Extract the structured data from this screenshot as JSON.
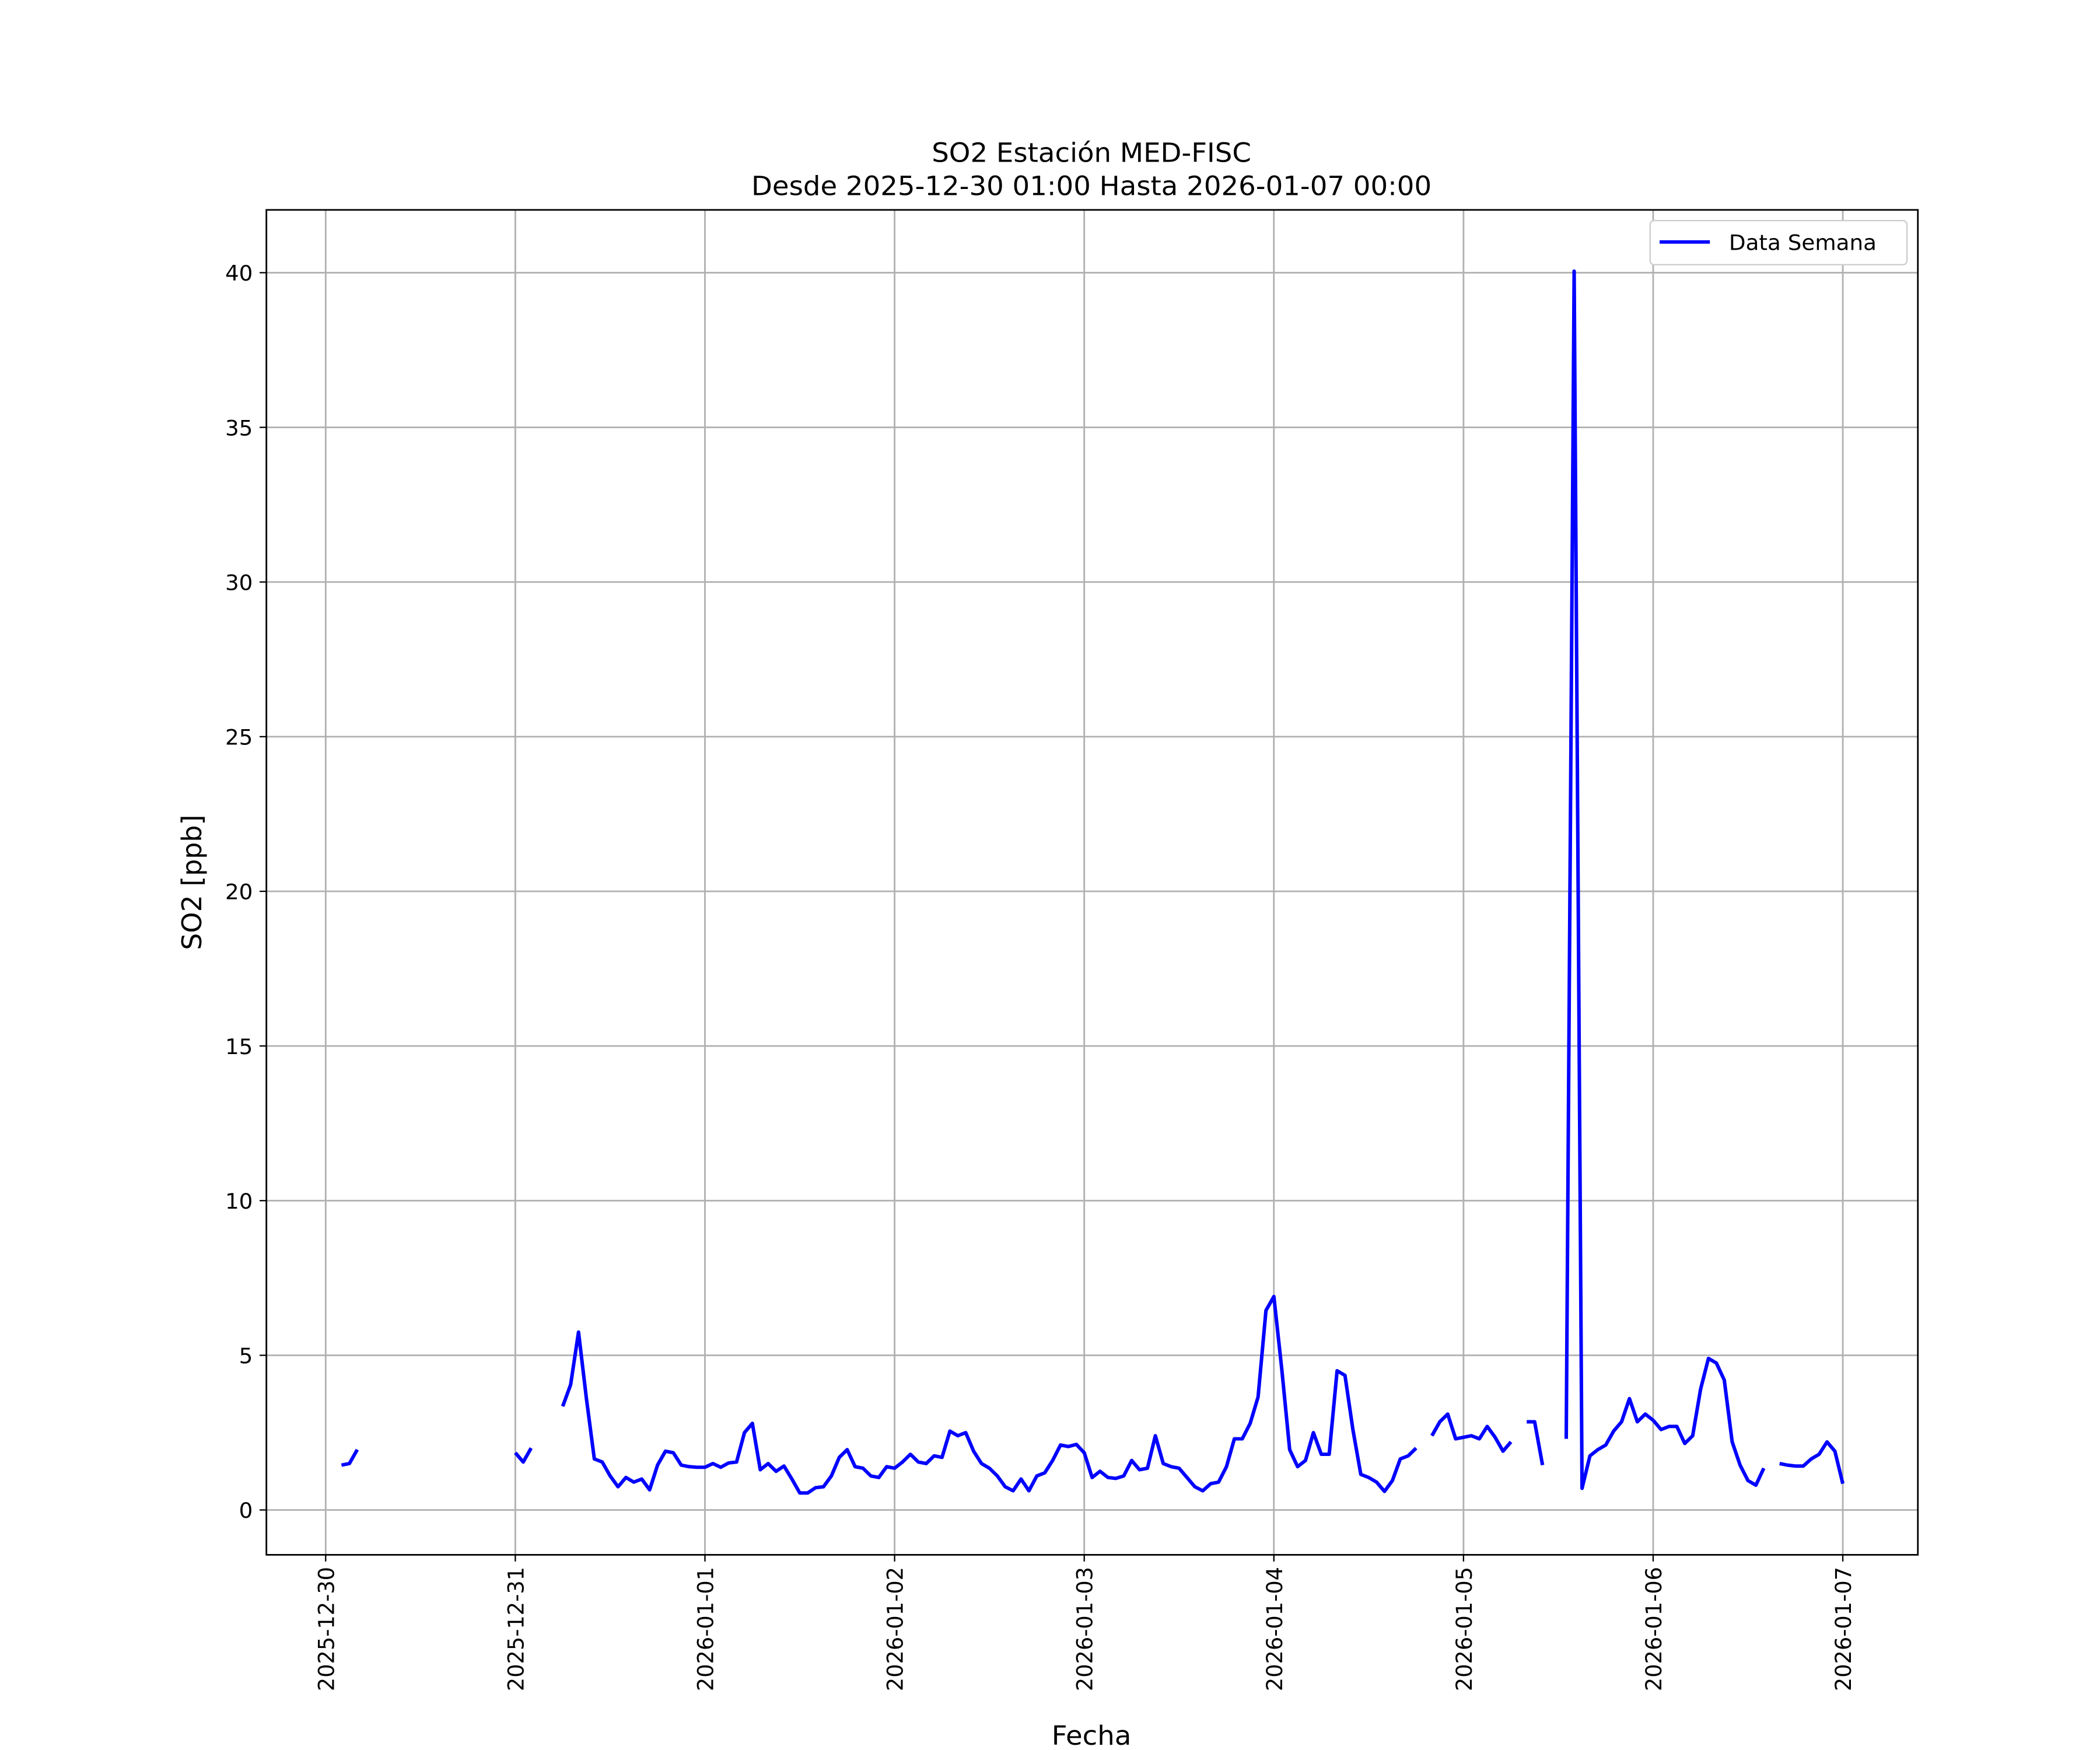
{
  "chart_data": {
    "type": "line",
    "title": "SO2 Estación MED-FISC",
    "subtitle": "Desde 2025-12-30 01:00 Hasta 2026-01-07 00:00",
    "xlabel": "Fecha",
    "ylabel": "SO2 [ppb]",
    "x": [
      "2025-12-30 01:00",
      "2025-12-30 02:00",
      "2025-12-30 03:00",
      "2025-12-30 04:00",
      "2025-12-30 05:00",
      "2025-12-30 06:00",
      "2025-12-30 07:00",
      "2025-12-30 08:00",
      "2025-12-30 09:00",
      "2025-12-30 10:00",
      "2025-12-30 11:00",
      "2025-12-30 12:00",
      "2025-12-30 13:00",
      "2025-12-30 14:00",
      "2025-12-30 15:00",
      "2025-12-30 16:00",
      "2025-12-30 17:00",
      "2025-12-30 18:00",
      "2025-12-30 19:00",
      "2025-12-30 20:00",
      "2025-12-30 21:00",
      "2025-12-30 22:00",
      "2025-12-30 23:00",
      "2025-12-31 00:00",
      "2025-12-31 01:00",
      "2025-12-31 02:00",
      "2025-12-31 03:00",
      "2025-12-31 04:00",
      "2025-12-31 05:00",
      "2025-12-31 06:00",
      "2025-12-31 07:00",
      "2025-12-31 08:00",
      "2025-12-31 09:00",
      "2025-12-31 10:00",
      "2025-12-31 11:00",
      "2025-12-31 12:00",
      "2025-12-31 13:00",
      "2025-12-31 14:00",
      "2025-12-31 15:00",
      "2025-12-31 16:00",
      "2025-12-31 17:00",
      "2025-12-31 18:00",
      "2025-12-31 19:00",
      "2025-12-31 20:00",
      "2025-12-31 21:00",
      "2025-12-31 22:00",
      "2025-12-31 23:00",
      "2026-01-01 00:00",
      "2026-01-01 01:00",
      "2026-01-01 02:00",
      "2026-01-01 03:00",
      "2026-01-01 04:00",
      "2026-01-01 05:00",
      "2026-01-01 06:00",
      "2026-01-01 07:00",
      "2026-01-01 08:00",
      "2026-01-01 09:00",
      "2026-01-01 10:00",
      "2026-01-01 11:00",
      "2026-01-01 12:00",
      "2026-01-01 13:00",
      "2026-01-01 14:00",
      "2026-01-01 15:00",
      "2026-01-01 16:00",
      "2026-01-01 17:00",
      "2026-01-01 18:00",
      "2026-01-01 19:00",
      "2026-01-01 20:00",
      "2026-01-01 21:00",
      "2026-01-01 22:00",
      "2026-01-01 23:00",
      "2026-01-02 00:00",
      "2026-01-02 01:00",
      "2026-01-02 02:00",
      "2026-01-02 03:00",
      "2026-01-02 04:00",
      "2026-01-02 05:00",
      "2026-01-02 06:00",
      "2026-01-02 07:00",
      "2026-01-02 08:00",
      "2026-01-02 09:00",
      "2026-01-02 10:00",
      "2026-01-02 11:00",
      "2026-01-02 12:00",
      "2026-01-02 13:00",
      "2026-01-02 14:00",
      "2026-01-02 15:00",
      "2026-01-02 16:00",
      "2026-01-02 17:00",
      "2026-01-02 18:00",
      "2026-01-02 19:00",
      "2026-01-02 20:00",
      "2026-01-02 21:00",
      "2026-01-02 22:00",
      "2026-01-02 23:00",
      "2026-01-03 00:00",
      "2026-01-03 01:00",
      "2026-01-03 02:00",
      "2026-01-03 03:00",
      "2026-01-03 04:00",
      "2026-01-03 05:00",
      "2026-01-03 06:00",
      "2026-01-03 07:00",
      "2026-01-03 08:00",
      "2026-01-03 09:00",
      "2026-01-03 10:00",
      "2026-01-03 11:00",
      "2026-01-03 12:00",
      "2026-01-03 13:00",
      "2026-01-03 14:00",
      "2026-01-03 15:00",
      "2026-01-03 16:00",
      "2026-01-03 17:00",
      "2026-01-03 18:00",
      "2026-01-03 19:00",
      "2026-01-03 20:00",
      "2026-01-03 21:00",
      "2026-01-03 22:00",
      "2026-01-03 23:00",
      "2026-01-04 00:00",
      "2026-01-04 01:00",
      "2026-01-04 02:00",
      "2026-01-04 03:00",
      "2026-01-04 04:00",
      "2026-01-04 05:00",
      "2026-01-04 06:00",
      "2026-01-04 07:00",
      "2026-01-04 08:00",
      "2026-01-04 09:00",
      "2026-01-04 10:00",
      "2026-01-04 11:00",
      "2026-01-04 12:00",
      "2026-01-04 13:00",
      "2026-01-04 14:00",
      "2026-01-04 15:00",
      "2026-01-04 16:00",
      "2026-01-04 17:00",
      "2026-01-04 18:00",
      "2026-01-04 19:00",
      "2026-01-04 20:00",
      "2026-01-04 21:00",
      "2026-01-04 22:00",
      "2026-01-04 23:00",
      "2026-01-05 00:00",
      "2026-01-05 01:00",
      "2026-01-05 02:00",
      "2026-01-05 03:00",
      "2026-01-05 04:00",
      "2026-01-05 05:00",
      "2026-01-05 06:00",
      "2026-01-05 07:00",
      "2026-01-05 08:00",
      "2026-01-05 09:00",
      "2026-01-05 10:00",
      "2026-01-05 11:00",
      "2026-01-05 12:00",
      "2026-01-05 13:00",
      "2026-01-05 14:00",
      "2026-01-05 15:00",
      "2026-01-05 16:00",
      "2026-01-05 17:00",
      "2026-01-05 18:00",
      "2026-01-05 19:00",
      "2026-01-05 20:00",
      "2026-01-05 21:00",
      "2026-01-05 22:00",
      "2026-01-05 23:00",
      "2026-01-06 00:00",
      "2026-01-06 01:00",
      "2026-01-06 02:00",
      "2026-01-06 03:00",
      "2026-01-06 04:00",
      "2026-01-06 05:00",
      "2026-01-06 06:00",
      "2026-01-06 07:00",
      "2026-01-06 08:00",
      "2026-01-06 09:00",
      "2026-01-06 10:00",
      "2026-01-06 11:00",
      "2026-01-06 12:00",
      "2026-01-06 13:00",
      "2026-01-06 14:00",
      "2026-01-06 15:00",
      "2026-01-06 16:00",
      "2026-01-06 17:00",
      "2026-01-06 18:00",
      "2026-01-06 19:00",
      "2026-01-06 20:00",
      "2026-01-06 21:00",
      "2026-01-06 22:00",
      "2026-01-06 23:00",
      "2026-01-07 00:00"
    ],
    "series": [
      {
        "name": "Data Semana",
        "color": "#0000ff",
        "values": [
          null,
          1.45,
          1.5,
          1.95,
          null,
          null,
          null,
          null,
          null,
          null,
          null,
          null,
          null,
          null,
          null,
          null,
          null,
          null,
          null,
          null,
          null,
          null,
          null,
          1.85,
          1.55,
          2.0,
          null,
          null,
          null,
          3.35,
          4.05,
          5.75,
          3.6,
          1.65,
          1.55,
          1.1,
          0.75,
          1.05,
          0.9,
          1.0,
          0.65,
          1.45,
          1.9,
          1.85,
          1.45,
          1.4,
          1.38,
          1.38,
          1.5,
          1.38,
          1.52,
          1.55,
          2.5,
          2.8,
          1.3,
          1.5,
          1.25,
          1.42,
          1.0,
          0.55,
          0.55,
          0.72,
          0.75,
          1.1,
          1.7,
          1.95,
          1.4,
          1.35,
          1.1,
          1.05,
          1.4,
          1.35,
          1.55,
          1.8,
          1.55,
          1.5,
          1.75,
          1.7,
          2.55,
          2.4,
          2.5,
          1.9,
          1.5,
          1.35,
          1.1,
          0.75,
          0.62,
          1.0,
          0.62,
          1.1,
          1.2,
          1.6,
          2.1,
          2.05,
          2.12,
          1.85,
          1.05,
          1.25,
          1.05,
          1.02,
          1.1,
          1.6,
          1.3,
          1.35,
          2.4,
          1.5,
          1.4,
          1.35,
          1.05,
          0.75,
          0.62,
          0.85,
          0.9,
          1.4,
          2.3,
          2.3,
          2.8,
          3.65,
          6.45,
          6.9,
          4.55,
          1.95,
          1.4,
          1.6,
          2.5,
          1.8,
          1.8,
          4.5,
          4.35,
          2.6,
          1.15,
          1.05,
          0.9,
          0.6,
          0.95,
          1.65,
          1.75,
          2.0,
          null,
          2.4,
          2.85,
          3.1,
          2.3,
          2.35,
          2.4,
          2.3,
          2.7,
          2.35,
          1.9,
          2.2,
          null,
          2.85,
          2.85,
          1.45,
          null,
          null,
          2.3,
          40.05,
          0.7,
          1.75,
          1.95,
          2.1,
          2.55,
          2.85,
          3.6,
          2.85,
          3.1,
          2.9,
          2.6,
          2.7,
          2.7,
          2.15,
          2.4,
          3.9,
          4.9,
          4.75,
          4.2,
          2.2,
          1.45,
          0.95,
          0.8,
          1.35,
          null,
          1.5,
          1.45,
          1.42,
          1.42,
          1.65,
          1.8,
          2.2,
          1.9,
          0.85
        ]
      }
    ],
    "xlim": [
      "2025-12-29 16:30",
      "2026-01-07 09:30"
    ],
    "xticks": [
      "2025-12-30",
      "2025-12-31",
      "2026-01-01",
      "2026-01-02",
      "2026-01-03",
      "2026-01-04",
      "2026-01-05",
      "2026-01-06",
      "2026-01-07"
    ],
    "ylim": [
      -1.45,
      42.03
    ],
    "yticks": [
      0,
      5,
      10,
      15,
      20,
      25,
      30,
      35,
      40
    ],
    "grid": true,
    "legend": "upper right"
  }
}
